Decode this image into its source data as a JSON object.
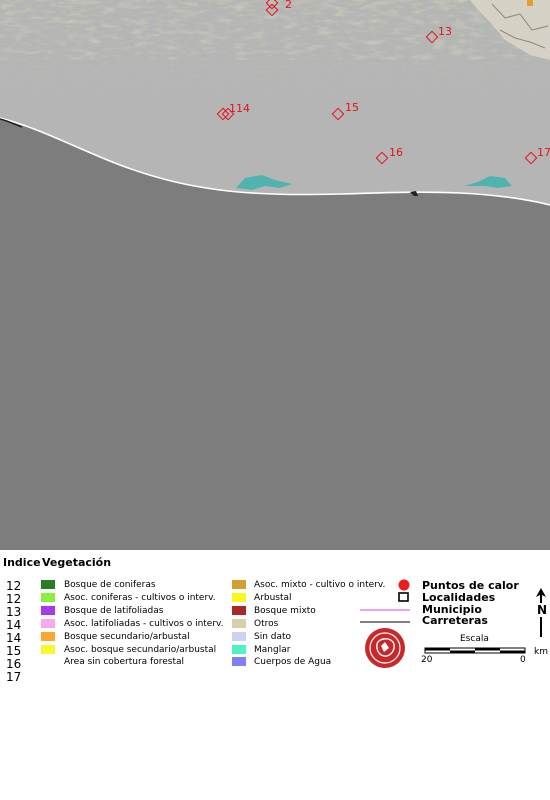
{
  "map": {
    "hotspots": [
      {
        "label": "2"
      },
      {
        "label": "13"
      },
      {
        "label": "14"
      },
      {
        "label": "14"
      },
      {
        "label": "15"
      },
      {
        "label": "16"
      },
      {
        "label": "17"
      }
    ],
    "colors": {
      "land": "#b5b5b5",
      "ocean": "#7d7d7d",
      "hotspot": "#e8101a",
      "lagoon": "#4fb3b0"
    }
  },
  "legend": {
    "indice_header": "Indice",
    "vegetacion_header": "Vegetación",
    "indices": [
      "12",
      "12",
      "13",
      "14",
      "14",
      "15",
      "16",
      "17"
    ],
    "vegetation_left": [
      {
        "label": "Bosque de coniferas",
        "color": "#2a7a2a"
      },
      {
        "label": "Asoc. coniferas - cultivos o interv.",
        "color": "#88f040"
      },
      {
        "label": "Bosque de latifoliadas",
        "color": "#a838f0"
      },
      {
        "label": "Asoc. latifoliadas - cultivos o interv.",
        "color": "#f8a8f0"
      },
      {
        "label": "Bosque secundario/arbustal",
        "color": "#f8a830"
      },
      {
        "label": "Asoc. bosque secundario/arbustal",
        "color": "#f8f830"
      },
      {
        "label": "Area sin cobertura forestal",
        "color": ""
      }
    ],
    "vegetation_right": [
      {
        "label": "Asoc. mixto - cultivo o interv.",
        "color": "#d0a030"
      },
      {
        "label": "Arbustal",
        "color": "#f8f820"
      },
      {
        "label": "Bosque mixto",
        "color": "#a82828"
      },
      {
        "label": "Otros",
        "color": "#d8d0a8"
      },
      {
        "label": "Sin dato",
        "color": "#d0d0f0"
      },
      {
        "label": "Manglar",
        "color": "#50f0c8"
      },
      {
        "label": "Cuerpos de Agua",
        "color": "#8080f0"
      }
    ],
    "symbols": {
      "puntos_de_calor": "Puntos de calor",
      "localidades": "Localidades",
      "municipio": "Municipio",
      "carreteras": "Carreteras"
    },
    "scale": {
      "title": "Escala",
      "left_value": "20",
      "right_value": "0",
      "unit": "km"
    },
    "north_label": "N"
  }
}
